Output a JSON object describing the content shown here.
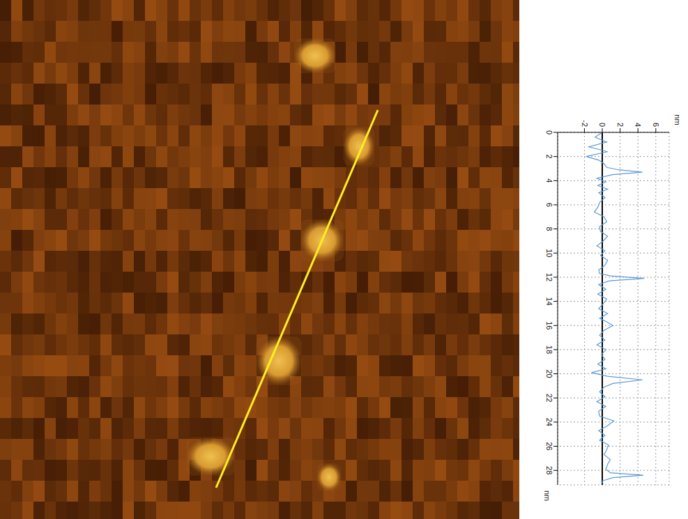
{
  "chart_data": {
    "type": "line",
    "x_label": "nm",
    "y_label": "nm",
    "x": [
      0,
      0.4,
      0.8,
      1.2,
      1.6,
      2.0,
      2.3,
      2.6,
      2.9,
      3.1,
      3.3,
      3.5,
      3.8,
      4.1,
      4.4,
      4.7,
      5.0,
      5.4,
      5.8,
      6.2,
      6.6,
      7.0,
      7.4,
      7.8,
      8.2,
      8.6,
      9.0,
      9.4,
      9.8,
      10.2,
      10.6,
      11.0,
      11.4,
      11.7,
      11.9,
      12.1,
      12.3,
      12.6,
      13.0,
      13.4,
      13.8,
      14.2,
      14.6,
      15.0,
      15.4,
      15.7,
      16.0,
      16.4,
      16.8,
      17.2,
      17.6,
      18.0,
      18.4,
      18.8,
      19.2,
      19.6,
      19.9,
      20.2,
      20.5,
      20.8,
      21.1,
      21.5,
      21.9,
      22.3,
      22.7,
      23.1,
      23.5,
      23.9,
      24.3,
      24.7,
      25.1,
      25.5,
      25.9,
      26.3,
      26.7,
      27.1,
      27.5,
      27.9,
      28.2,
      28.4,
      28.6,
      28.9,
      29.1
    ],
    "values": [
      0,
      -0.8,
      0.5,
      -1.5,
      0.6,
      -1.8,
      -0.4,
      0.2,
      0.5,
      1.8,
      4.5,
      1.2,
      -0.6,
      0.4,
      -0.5,
      0.6,
      -0.4,
      0.3,
      -0.3,
      -0.5,
      -0.9,
      0.2,
      0.5,
      -0.3,
      -0.2,
      0.6,
      0.1,
      -0.6,
      0.3,
      -0.2,
      0.6,
      0.3,
      -0.4,
      -0.3,
      1.0,
      4.7,
      0.8,
      -0.4,
      0.4,
      -0.5,
      0.5,
      0.1,
      -0.4,
      0.6,
      -0.3,
      0.5,
      1.2,
      0.2,
      -0.3,
      0.3,
      -0.6,
      0.4,
      -0.1,
      0.3,
      -0.5,
      0.4,
      -1.2,
      0.6,
      4.5,
      1.2,
      0.2,
      -0.3,
      0.3,
      -0.6,
      0.4,
      -0.4,
      -0.3,
      1.3,
      0.6,
      -0.4,
      0.3,
      -0.3,
      0.7,
      0.5,
      0.2,
      0.9,
      0.6,
      0.4,
      0.9,
      4.6,
      1.2,
      -0.1,
      0.1
    ],
    "color": "#5b9bd5",
    "line_style": "solid",
    "baseline": 0,
    "xlim": [
      0,
      29.2
    ],
    "xticks": [
      0,
      2,
      4,
      6,
      8,
      10,
      12,
      14,
      16,
      18,
      20,
      22,
      24,
      26,
      28
    ],
    "ylim": [
      -5,
      7.5
    ],
    "yticks": [
      -2,
      0,
      2,
      4,
      6
    ],
    "grid": true
  }
}
